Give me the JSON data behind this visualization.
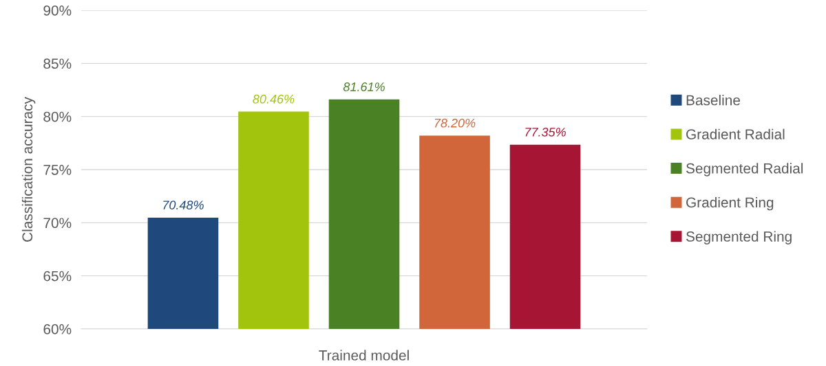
{
  "chart_data": {
    "type": "bar",
    "xlabel": "Trained model",
    "ylabel": "Classification accuracy",
    "categories": [
      null
    ],
    "series": [
      {
        "name": "Baseline",
        "color": "#1f497d",
        "values": [
          70.48
        ],
        "value_labels": [
          "70.48%"
        ]
      },
      {
        "name": "Gradient Radial",
        "color": "#a2c40c",
        "values": [
          80.46
        ],
        "value_labels": [
          "80.46%"
        ]
      },
      {
        "name": "Segmented Radial",
        "color": "#4a8124",
        "values": [
          81.61
        ],
        "value_labels": [
          "81.61%"
        ]
      },
      {
        "name": "Gradient Ring",
        "color": "#d0663a",
        "values": [
          78.2
        ],
        "value_labels": [
          "78.20%"
        ]
      },
      {
        "name": "Segmented Ring",
        "color": "#a71535",
        "values": [
          77.35
        ],
        "value_labels": [
          "77.35%"
        ]
      }
    ],
    "ylim": [
      60,
      90
    ],
    "yticks": [
      {
        "value": 60,
        "label": "60%"
      },
      {
        "value": 65,
        "label": "65%"
      },
      {
        "value": 70,
        "label": "70%"
      },
      {
        "value": 75,
        "label": "75%"
      },
      {
        "value": 80,
        "label": "80%"
      },
      {
        "value": 85,
        "label": "85%"
      },
      {
        "value": 90,
        "label": "90%"
      }
    ],
    "grid": "y",
    "legend": "right"
  }
}
